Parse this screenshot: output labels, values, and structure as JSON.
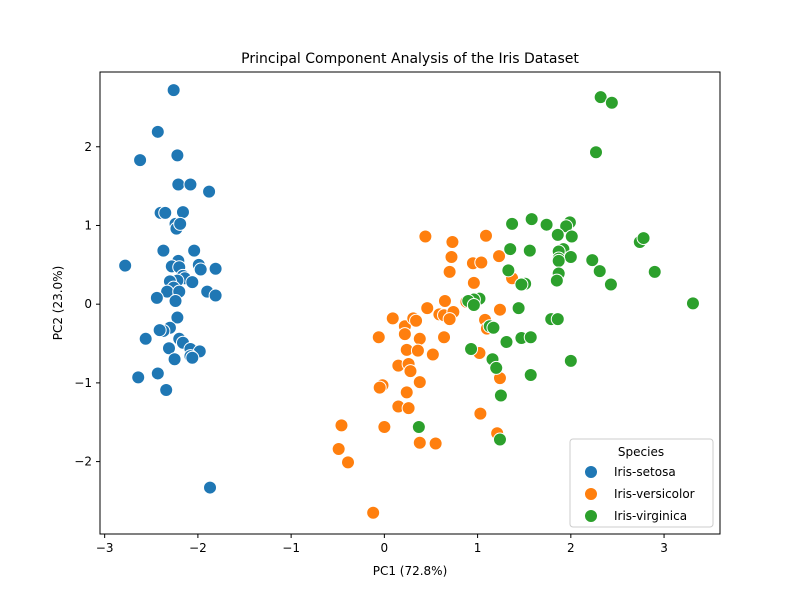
{
  "chart_data": {
    "type": "scatter",
    "title": "Principal Component Analysis of the Iris Dataset",
    "xlabel": "PC1 (72.8%)",
    "ylabel": "PC2 (23.0%)",
    "xlim": [
      -3.05,
      3.6
    ],
    "ylim": [
      -2.92,
      2.95
    ],
    "xticks": [
      -3,
      -2,
      -1,
      0,
      1,
      2,
      3
    ],
    "yticks": [
      -2,
      -1,
      0,
      1,
      2
    ],
    "xtick_labels": [
      "−3",
      "−2",
      "−1",
      "0",
      "1",
      "2",
      "3"
    ],
    "ytick_labels": [
      "−2",
      "−1",
      "0",
      "1",
      "2"
    ],
    "grid": false,
    "legend": {
      "title": "Species",
      "placement": "lower-right"
    },
    "series": [
      {
        "name": "Iris-setosa",
        "color": "#1f77b4",
        "points": [
          [
            -2.26,
            2.72
          ],
          [
            -2.43,
            2.19
          ],
          [
            -2.62,
            1.83
          ],
          [
            -2.22,
            1.89
          ],
          [
            -2.21,
            1.52
          ],
          [
            -2.08,
            1.52
          ],
          [
            -1.88,
            1.43
          ],
          [
            -2.4,
            1.16
          ],
          [
            -2.35,
            1.16
          ],
          [
            -2.16,
            1.17
          ],
          [
            -2.24,
            1.02
          ],
          [
            -2.23,
            0.96
          ],
          [
            -2.19,
            1.02
          ],
          [
            -2.37,
            0.68
          ],
          [
            -2.04,
            0.68
          ],
          [
            -2.21,
            0.55
          ],
          [
            -2.28,
            0.48
          ],
          [
            -2.2,
            0.47
          ],
          [
            -2.78,
            0.49
          ],
          [
            -1.99,
            0.5
          ],
          [
            -1.97,
            0.44
          ],
          [
            -1.81,
            0.45
          ],
          [
            -2.16,
            0.36
          ],
          [
            -2.14,
            0.33
          ],
          [
            -2.22,
            0.3
          ],
          [
            -2.3,
            0.29
          ],
          [
            -2.26,
            0.21
          ],
          [
            -2.06,
            0.28
          ],
          [
            -2.33,
            0.16
          ],
          [
            -2.2,
            0.16
          ],
          [
            -2.44,
            0.08
          ],
          [
            -1.9,
            0.16
          ],
          [
            -1.81,
            0.11
          ],
          [
            -2.24,
            0.04
          ],
          [
            -2.22,
            -0.17
          ],
          [
            -2.3,
            -0.3
          ],
          [
            -2.37,
            -0.34
          ],
          [
            -2.41,
            -0.33
          ],
          [
            -2.56,
            -0.44
          ],
          [
            -2.2,
            -0.44
          ],
          [
            -2.16,
            -0.49
          ],
          [
            -2.31,
            -0.56
          ],
          [
            -2.08,
            -0.57
          ],
          [
            -1.98,
            -0.6
          ],
          [
            -2.25,
            -0.7
          ],
          [
            -2.08,
            -0.66
          ],
          [
            -2.06,
            -0.68
          ],
          [
            -2.64,
            -0.93
          ],
          [
            -2.43,
            -0.88
          ],
          [
            -2.34,
            -1.09
          ],
          [
            -1.87,
            -2.33
          ]
        ]
      },
      {
        "name": "Iris-versicolor",
        "color": "#ff7f0e",
        "points": [
          [
            0.44,
            0.86
          ],
          [
            0.73,
            0.79
          ],
          [
            1.09,
            0.87
          ],
          [
            0.72,
            0.6
          ],
          [
            0.7,
            0.41
          ],
          [
            0.95,
            0.52
          ],
          [
            1.04,
            0.53
          ],
          [
            0.96,
            0.27
          ],
          [
            1.23,
            0.61
          ],
          [
            1.37,
            0.33
          ],
          [
            0.65,
            0.04
          ],
          [
            0.88,
            0.03
          ],
          [
            0.46,
            -0.05
          ],
          [
            0.09,
            -0.18
          ],
          [
            0.22,
            -0.28
          ],
          [
            0.59,
            -0.13
          ],
          [
            0.64,
            -0.14
          ],
          [
            0.31,
            -0.18
          ],
          [
            0.22,
            -0.38
          ],
          [
            0.74,
            -0.1
          ],
          [
            0.34,
            -0.21
          ],
          [
            0.7,
            -0.19
          ],
          [
            0.38,
            -0.44
          ],
          [
            0.64,
            -0.42
          ],
          [
            0.52,
            -0.64
          ],
          [
            -0.06,
            -0.42
          ],
          [
            1.08,
            -0.2
          ],
          [
            1.1,
            -0.31
          ],
          [
            1.24,
            -0.07
          ],
          [
            1.02,
            -0.62
          ],
          [
            0.24,
            -0.58
          ],
          [
            0.36,
            -0.59
          ],
          [
            0.15,
            -0.78
          ],
          [
            0.26,
            -0.76
          ],
          [
            0.28,
            -0.85
          ],
          [
            0.38,
            -0.99
          ],
          [
            1.24,
            -0.94
          ],
          [
            -0.02,
            -1.03
          ],
          [
            -0.05,
            -1.06
          ],
          [
            0.24,
            -1.12
          ],
          [
            0.15,
            -1.3
          ],
          [
            0.26,
            -1.32
          ],
          [
            1.03,
            -1.39
          ],
          [
            0.0,
            -1.56
          ],
          [
            -0.46,
            -1.54
          ],
          [
            0.38,
            -1.76
          ],
          [
            0.55,
            -1.77
          ],
          [
            1.21,
            -1.64
          ],
          [
            -0.49,
            -1.84
          ],
          [
            -0.39,
            -2.01
          ],
          [
            -0.12,
            -2.65
          ]
        ]
      },
      {
        "name": "Iris-virginica",
        "color": "#2ca02c",
        "points": [
          [
            2.32,
            2.63
          ],
          [
            2.44,
            2.56
          ],
          [
            2.27,
            1.93
          ],
          [
            1.58,
            1.08
          ],
          [
            1.99,
            1.04
          ],
          [
            1.74,
            1.01
          ],
          [
            1.95,
            0.99
          ],
          [
            1.37,
            1.02
          ],
          [
            1.86,
            0.88
          ],
          [
            2.01,
            0.86
          ],
          [
            2.74,
            0.79
          ],
          [
            2.78,
            0.84
          ],
          [
            1.92,
            0.7
          ],
          [
            1.35,
            0.7
          ],
          [
            1.87,
            0.67
          ],
          [
            1.56,
            0.68
          ],
          [
            1.87,
            0.58
          ],
          [
            2.0,
            0.6
          ],
          [
            2.23,
            0.56
          ],
          [
            1.87,
            0.55
          ],
          [
            1.33,
            0.43
          ],
          [
            1.87,
            0.39
          ],
          [
            2.31,
            0.42
          ],
          [
            2.9,
            0.41
          ],
          [
            1.85,
            0.3
          ],
          [
            1.51,
            0.26
          ],
          [
            1.47,
            0.25
          ],
          [
            2.43,
            0.25
          ],
          [
            3.31,
            0.01
          ],
          [
            1.02,
            0.07
          ],
          [
            0.96,
            0.06
          ],
          [
            0.9,
            0.04
          ],
          [
            0.96,
            -0.01
          ],
          [
            1.44,
            -0.05
          ],
          [
            1.79,
            -0.19
          ],
          [
            1.86,
            -0.19
          ],
          [
            1.13,
            -0.28
          ],
          [
            1.17,
            -0.3
          ],
          [
            1.47,
            -0.43
          ],
          [
            1.57,
            -0.42
          ],
          [
            1.31,
            -0.48
          ],
          [
            0.93,
            -0.57
          ],
          [
            2.0,
            -0.72
          ],
          [
            1.16,
            -0.7
          ],
          [
            1.2,
            -0.81
          ],
          [
            1.57,
            -0.9
          ],
          [
            1.25,
            -1.16
          ],
          [
            0.37,
            -1.56
          ],
          [
            1.24,
            -1.72
          ]
        ]
      }
    ]
  }
}
